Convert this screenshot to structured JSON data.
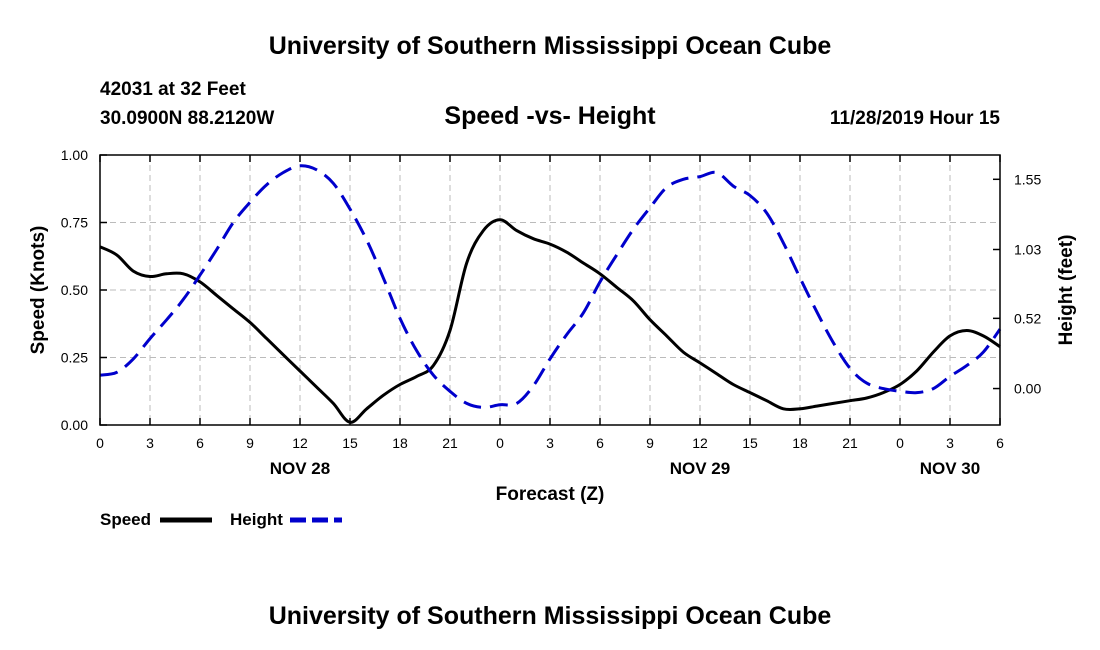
{
  "page": {
    "header_title": "University of Southern Mississippi Ocean Cube",
    "footer_title": "University of Southern Mississippi Ocean Cube",
    "station_line": "42031 at 32 Feet",
    "coords_line": "30.0900N 88.2120W",
    "chart_title": "Speed -vs- Height",
    "datetime_line": "11/28/2019 Hour 15"
  },
  "colors": {
    "speed": "#000000",
    "height": "#0000cc",
    "grid": "#bbbbbb"
  },
  "chart_data": {
    "type": "line",
    "title": "Speed -vs- Height",
    "xlabel": "Forecast (Z)",
    "ylabel": "Speed (Knots)",
    "y2label": "Height (feet)",
    "x_unit": "hours from 11/28 00Z",
    "xlim": [
      0,
      54
    ],
    "ylim": [
      0,
      1.0
    ],
    "y2lim": [
      -0.27,
      1.73
    ],
    "grid": true,
    "x_ticks": [
      0,
      3,
      6,
      9,
      12,
      15,
      18,
      21,
      24,
      27,
      30,
      33,
      36,
      39,
      42,
      45,
      48,
      51,
      54
    ],
    "x_tick_labels": [
      "0",
      "3",
      "6",
      "9",
      "12",
      "15",
      "18",
      "21",
      "0",
      "3",
      "6",
      "9",
      "12",
      "15",
      "18",
      "21",
      "0",
      "3",
      "6"
    ],
    "date_labels": [
      {
        "x": 12,
        "label": "NOV 28"
      },
      {
        "x": 36,
        "label": "NOV 29"
      },
      {
        "x": 51,
        "label": "NOV 30"
      }
    ],
    "y_ticks": [
      0,
      0.25,
      0.5,
      0.75,
      1.0
    ],
    "y_tick_labels": [
      "0.00",
      "0.25",
      "0.50",
      "0.75",
      "1.00"
    ],
    "y2_ticks": [
      0.0,
      0.52,
      1.03,
      1.55
    ],
    "y2_tick_labels": [
      "0.00",
      "0.52",
      "1.03",
      "1.55"
    ],
    "legend": {
      "position": "bottom-left",
      "entries": [
        "Speed",
        "Height"
      ]
    },
    "series": [
      {
        "name": "Speed",
        "axis": "left",
        "style": "solid",
        "x": [
          0,
          1,
          2,
          3,
          4,
          5,
          6,
          7,
          8,
          9,
          10,
          11,
          12,
          13,
          14,
          15,
          16,
          17,
          18,
          19,
          20,
          21,
          22,
          23,
          24,
          25,
          26,
          27,
          28,
          29,
          30,
          31,
          32,
          33,
          34,
          35,
          36,
          37,
          38,
          39,
          40,
          41,
          42,
          43,
          44,
          45,
          46,
          47,
          48,
          49,
          50,
          51,
          52,
          53,
          54
        ],
        "values": [
          0.66,
          0.63,
          0.57,
          0.55,
          0.56,
          0.56,
          0.53,
          0.48,
          0.43,
          0.38,
          0.32,
          0.26,
          0.2,
          0.14,
          0.08,
          0.01,
          0.06,
          0.11,
          0.15,
          0.18,
          0.22,
          0.35,
          0.6,
          0.72,
          0.76,
          0.72,
          0.69,
          0.67,
          0.64,
          0.6,
          0.56,
          0.51,
          0.46,
          0.39,
          0.33,
          0.27,
          0.23,
          0.19,
          0.15,
          0.12,
          0.09,
          0.06,
          0.06,
          0.07,
          0.08,
          0.09,
          0.1,
          0.12,
          0.15,
          0.2,
          0.27,
          0.33,
          0.35,
          0.33,
          0.29
        ]
      },
      {
        "name": "Height",
        "axis": "right",
        "style": "dashed",
        "x": [
          0,
          1,
          2,
          3,
          4,
          5,
          6,
          7,
          8,
          9,
          10,
          11,
          12,
          13,
          14,
          15,
          16,
          17,
          18,
          19,
          20,
          21,
          22,
          23,
          24,
          25,
          26,
          27,
          28,
          29,
          30,
          31,
          32,
          33,
          34,
          35,
          36,
          37,
          38,
          39,
          40,
          41,
          42,
          43,
          44,
          45,
          46,
          47,
          48,
          49,
          50,
          51,
          52,
          53,
          54
        ],
        "values": [
          0.1,
          0.12,
          0.22,
          0.37,
          0.51,
          0.66,
          0.84,
          1.03,
          1.23,
          1.38,
          1.51,
          1.6,
          1.65,
          1.62,
          1.52,
          1.33,
          1.1,
          0.82,
          0.52,
          0.28,
          0.1,
          -0.02,
          -0.11,
          -0.14,
          -0.12,
          -0.11,
          0.02,
          0.22,
          0.4,
          0.56,
          0.79,
          0.99,
          1.18,
          1.34,
          1.49,
          1.55,
          1.57,
          1.6,
          1.5,
          1.43,
          1.3,
          1.08,
          0.82,
          0.57,
          0.34,
          0.15,
          0.04,
          0.0,
          -0.02,
          -0.03,
          0.0,
          0.09,
          0.17,
          0.27,
          0.44
        ]
      }
    ]
  }
}
